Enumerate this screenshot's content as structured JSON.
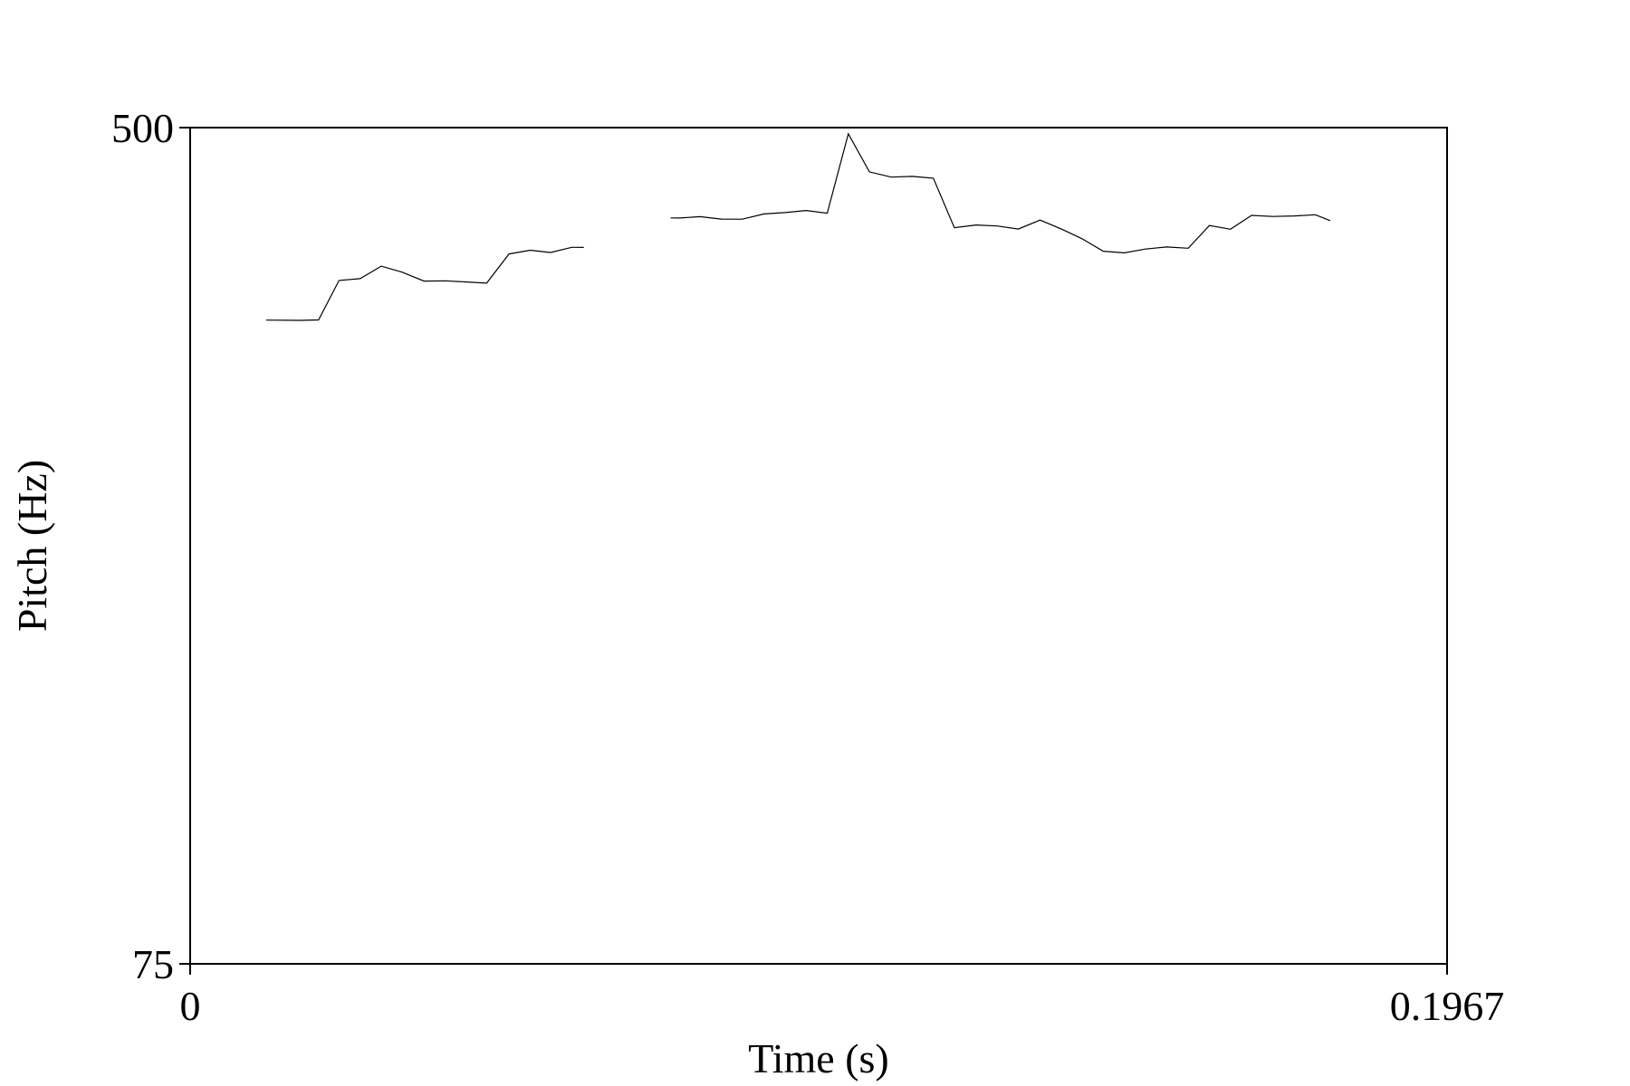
{
  "chart_data": {
    "type": "line",
    "xlabel": "Time (s)",
    "ylabel": "Pitch (Hz)",
    "xlim": [
      0,
      0.1967
    ],
    "ylim": [
      75,
      500
    ],
    "x_tick_labels": [
      "0",
      "0.1967"
    ],
    "y_tick_labels": [
      "75",
      "500"
    ],
    "grid": false,
    "series": [
      {
        "segments": [
          {
            "x": [
              0.0119,
              0.0172,
              0.0201,
              0.0233,
              0.0266,
              0.0299,
              0.0331,
              0.0366,
              0.0399,
              0.0431,
              0.0464,
              0.0499,
              0.0532,
              0.0564,
              0.0597,
              0.0616
            ],
            "y": [
              323.1,
              322.9,
              323.2,
              353.5,
              354.9,
              365.1,
              360.3,
              353.0,
              353.2,
              352.3,
              351.3,
              375.4,
              378.6,
              376.6,
              381.1,
              381.0
            ]
          },
          {
            "x": [
              0.0752,
              0.0766,
              0.0798,
              0.0831,
              0.0864,
              0.0898,
              0.0931,
              0.0964,
              0.0997,
              0.103,
              0.1063,
              0.1097,
              0.113,
              0.1163,
              0.1196,
              0.123,
              0.1263,
              0.1296,
              0.133,
              0.1363,
              0.1396,
              0.1429,
              0.1462,
              0.1495,
              0.1528,
              0.1562,
              0.1595,
              0.1628,
              0.1661,
              0.1694,
              0.1728,
              0.1761,
              0.1784
            ],
            "y": [
              407.4,
              407.3,
              408.5,
              406.3,
              406.2,
              411.1,
              412.3,
              414.3,
              411.7,
              493.1,
              452.2,
              446.9,
              447.6,
              445.8,
              398.4,
              400.9,
              400.0,
              397.2,
              405.4,
              397.4,
              388.5,
              377.7,
              376.3,
              379.6,
              381.4,
              380.3,
              400.4,
              397.0,
              409.7,
              408.7,
              409.2,
              410.3,
              404.9
            ]
          }
        ]
      }
    ]
  }
}
